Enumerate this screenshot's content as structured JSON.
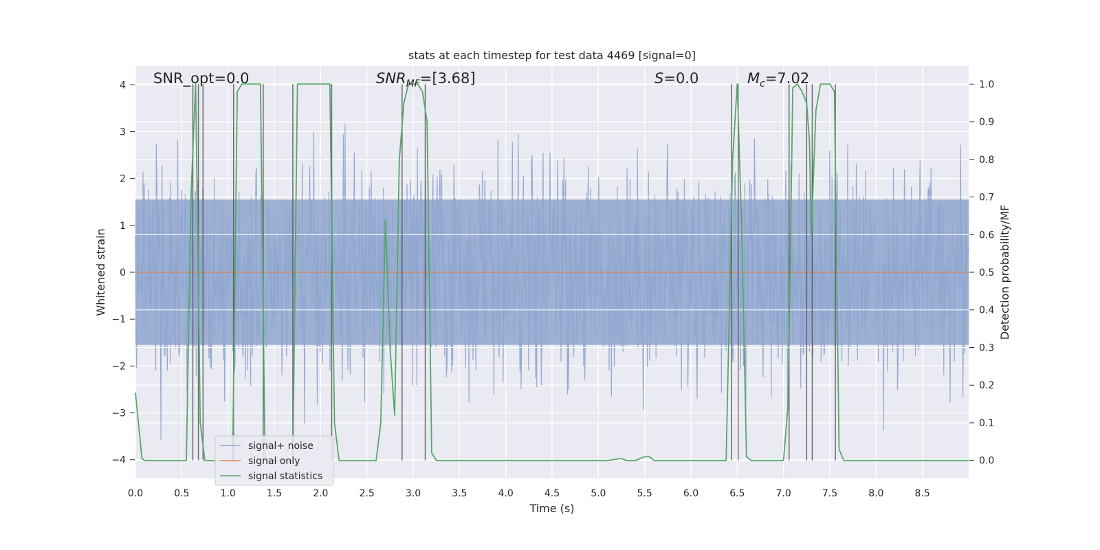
{
  "chart_data": {
    "type": "line",
    "title": "stats at each timestep for test data 4469 [signal=0]",
    "xlabel": "Time (s)",
    "ylabel_left": "Whitened strain",
    "ylabel_right": "Detection probability/MF",
    "xlim": [
      0.0,
      9.0
    ],
    "ylim_left": [
      -4.4,
      4.4
    ],
    "ylim_right": [
      -0.048,
      1.048
    ],
    "x_ticks": [
      0.0,
      0.5,
      1.0,
      1.5,
      2.0,
      2.5,
      3.0,
      3.5,
      4.0,
      4.5,
      5.0,
      5.5,
      6.0,
      6.5,
      7.0,
      7.5,
      8.0,
      8.5
    ],
    "x_tick_labels": [
      "0.0",
      "0.5",
      "1.0",
      "1.5",
      "2.0",
      "2.5",
      "3.0",
      "3.5",
      "4.0",
      "4.5",
      "5.0",
      "5.5",
      "6.0",
      "6.5",
      "7.0",
      "7.5",
      "8.0",
      "8.5"
    ],
    "y_left_ticks": [
      4,
      3,
      2,
      1,
      0,
      -1,
      -2,
      -3,
      -4
    ],
    "y_left_tick_labels": [
      "4",
      "3",
      "2",
      "1",
      "0",
      "−1",
      "−2",
      "−3",
      "−4"
    ],
    "y_right_ticks": [
      1.0,
      0.9,
      0.8,
      0.7,
      0.6,
      0.5,
      0.4,
      0.3,
      0.2,
      0.1,
      0.0
    ],
    "y_right_tick_labels": [
      "1.0",
      "0.9",
      "0.8",
      "0.7",
      "0.6",
      "0.5",
      "0.4",
      "0.3",
      "0.2",
      "0.1",
      "0.0"
    ],
    "annotations": {
      "snr_opt": "SNR_opt=0.0",
      "snr_mf_main": "SNR",
      "snr_mf_sub": "MF",
      "snr_mf_value": "=[3.68]",
      "s_main": "S",
      "s_value": "=0.0",
      "mc_main": "M",
      "mc_sub": "c",
      "mc_value": "=7.02"
    },
    "legend": [
      "signal+ noise",
      "signal only",
      "signal statistics"
    ],
    "legend_position": "lower-left",
    "colors": {
      "noise": "#8fa6cf",
      "signal_only": "#dd8452",
      "statistics": "#55a868",
      "vlines": "#555555",
      "background": "#eaeaf2",
      "grid": "#ffffff"
    },
    "noise_series": {
      "description": "whitened strain, approx 1 std, range about -3.7 to 4",
      "x_start": 0.0,
      "x_end": 9.0,
      "n_points": 1440,
      "std": 1.0
    },
    "signal_only": {
      "x": [
        0.0,
        9.0
      ],
      "y": [
        0.0,
        0.0
      ]
    },
    "statistics": {
      "x": [
        0.0,
        0.07,
        0.1,
        0.15,
        0.2,
        0.55,
        0.6,
        0.65,
        0.7,
        0.75,
        0.8,
        0.9,
        1.05,
        1.1,
        1.15,
        1.2,
        1.35,
        1.4,
        1.45,
        1.5,
        1.6,
        1.7,
        1.75,
        1.8,
        2.0,
        2.1,
        2.15,
        2.2,
        2.25,
        2.3,
        2.4,
        2.6,
        2.65,
        2.7,
        2.75,
        2.8,
        2.85,
        2.9,
        2.95,
        3.0,
        3.05,
        3.1,
        3.15,
        3.2,
        3.25,
        3.3,
        3.4,
        5.0,
        5.1,
        5.25,
        5.3,
        5.4,
        5.5,
        5.55,
        5.6,
        5.65,
        5.7,
        5.8,
        5.9,
        6.0,
        6.2,
        6.38,
        6.45,
        6.5,
        6.55,
        6.6,
        6.65,
        6.7,
        6.8,
        6.9,
        7.0,
        7.05,
        7.1,
        7.15,
        7.2,
        7.25,
        7.28,
        7.3,
        7.35,
        7.4,
        7.45,
        7.5,
        7.55,
        7.6,
        7.65,
        7.7,
        7.8,
        8.0,
        9.0
      ],
      "y": [
        0.18,
        0.005,
        0.0,
        0.0,
        0.0,
        0.0,
        0.7,
        1.0,
        0.1,
        0.0,
        0.0,
        0.0,
        0.0,
        0.98,
        1.0,
        1.0,
        1.0,
        0.0,
        0.0,
        0.0,
        0.0,
        0.0,
        1.0,
        1.0,
        1.0,
        1.0,
        0.1,
        0.0,
        0.0,
        0.0,
        0.0,
        0.0,
        0.1,
        0.64,
        0.3,
        0.12,
        0.8,
        0.95,
        1.0,
        1.0,
        1.0,
        0.98,
        0.9,
        0.02,
        0.0,
        0.0,
        0.0,
        0.0,
        0.0,
        0.005,
        0.0,
        0.0,
        0.01,
        0.01,
        0.0,
        0.0,
        0.0,
        0.0,
        0.0,
        0.0,
        0.0,
        0.0,
        0.8,
        1.0,
        0.6,
        0.01,
        0.0,
        0.0,
        0.0,
        0.0,
        0.0,
        0.15,
        0.99,
        1.0,
        0.98,
        0.95,
        0.85,
        0.6,
        0.93,
        1.0,
        1.0,
        1.0,
        0.98,
        0.03,
        0.0,
        0.0,
        0.0,
        0.0,
        0.0
      ]
    },
    "vlines_x": [
      0.62,
      0.68,
      0.73,
      1.06,
      1.38,
      1.7,
      2.12,
      2.88,
      3.13,
      6.44,
      6.51,
      7.06,
      7.25,
      7.31,
      7.56
    ]
  }
}
